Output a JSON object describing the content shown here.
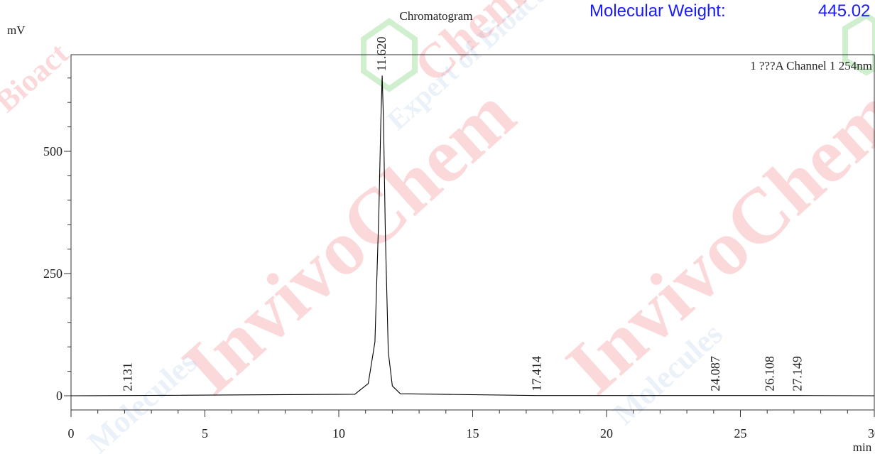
{
  "header": {
    "mw_label": "Molecular Weight:",
    "mw_value": "445.02"
  },
  "watermark": {
    "text_fragments": [
      "InvivoChem",
      "Expert of Bioactive Molecules",
      "Molecules",
      "Chem",
      "Bioact"
    ],
    "colors": {
      "red": "#e8141c",
      "green": "#3fbf3f",
      "blue": "#7fa8d8"
    }
  },
  "chart_data": {
    "type": "line",
    "title": "Chromatogram",
    "xlabel": "min",
    "ylabel": "mV",
    "channel_label": "1 ???A Channel 1 254nm",
    "xlim": [
      0,
      30
    ],
    "ylim": [
      -30,
      700
    ],
    "x_ticks": [
      0,
      5,
      10,
      15,
      20,
      25,
      30
    ],
    "y_ticks": [
      0,
      250,
      500
    ],
    "x_minor_step": 1,
    "y_minor_step": 50,
    "grid": false,
    "series": [
      {
        "color": "#000000",
        "x": [
          0,
          2.131,
          10.6,
          11.1,
          11.35,
          11.5,
          11.57,
          11.62,
          11.67,
          11.74,
          11.85,
          12.0,
          12.3,
          17.414,
          24.087,
          26.108,
          27.149,
          30
        ],
        "y": [
          0,
          0.5,
          3,
          25,
          110,
          380,
          560,
          655,
          560,
          330,
          90,
          20,
          4,
          0.5,
          0.5,
          0.5,
          0.5,
          0
        ]
      }
    ],
    "peaks": [
      {
        "rt": 2.131,
        "label": "2.131"
      },
      {
        "rt": 11.62,
        "label": "11.620"
      },
      {
        "rt": 17.414,
        "label": "17.414"
      },
      {
        "rt": 24.087,
        "label": "24.087"
      },
      {
        "rt": 26.108,
        "label": "26.108"
      },
      {
        "rt": 27.149,
        "label": "27.149"
      }
    ]
  }
}
